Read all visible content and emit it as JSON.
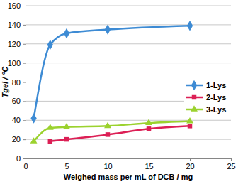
{
  "chart_data": {
    "type": "line",
    "x_label": "Weighed mass per mL of DCB / mg",
    "y_label": "Tgel / °C",
    "xlim": [
      0,
      25
    ],
    "xticks": [
      0,
      5,
      10,
      15,
      20,
      25
    ],
    "ylim": [
      0,
      160
    ],
    "yticks": [
      0,
      20,
      40,
      60,
      80,
      100,
      120,
      140,
      160
    ],
    "grid": "y",
    "legend": "right",
    "line_style": "smooth",
    "series": [
      {
        "name": "1-Lys",
        "color": "#3d8bd4",
        "marker": "diamond",
        "x": [
          1,
          3,
          5,
          10,
          20
        ],
        "values": [
          42,
          119,
          131,
          135,
          139
        ]
      },
      {
        "name": "2-Lys",
        "color": "#dc1f55",
        "marker": "square",
        "x": [
          3,
          5,
          10,
          15,
          20
        ],
        "values": [
          18,
          20,
          25,
          31,
          34
        ]
      },
      {
        "name": "3-Lys",
        "color": "#9bd22e",
        "marker": "triangle",
        "x": [
          1,
          3,
          5,
          10,
          15,
          20
        ],
        "values": [
          18,
          32,
          33,
          34,
          37,
          39
        ]
      }
    ]
  }
}
